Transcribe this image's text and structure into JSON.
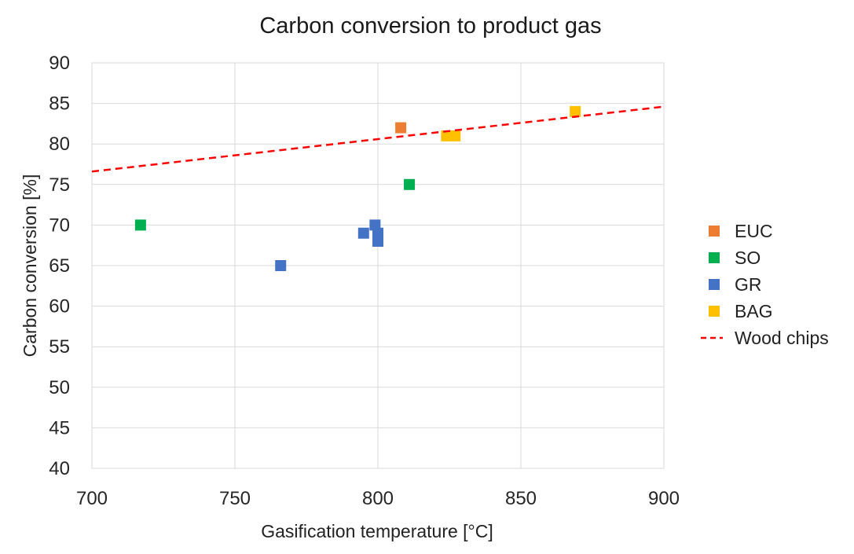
{
  "chart_data": {
    "type": "scatter",
    "title": "Carbon conversion to product gas",
    "xlabel": "Gasification temperature [°C]",
    "ylabel": "Carbon conversion [%]",
    "xlim": [
      700,
      900
    ],
    "ylim": [
      40,
      90
    ],
    "xticks": [
      700,
      750,
      800,
      850,
      900
    ],
    "yticks": [
      40,
      45,
      50,
      55,
      60,
      65,
      70,
      75,
      80,
      85,
      90
    ],
    "grid": true,
    "legend_position": "right",
    "series": [
      {
        "name": "EUC",
        "color": "#ED7D31",
        "marker": "square",
        "points": [
          [
            808,
            82
          ]
        ]
      },
      {
        "name": "SO",
        "color": "#00B050",
        "marker": "square",
        "points": [
          [
            717,
            70
          ],
          [
            811,
            75
          ]
        ]
      },
      {
        "name": "GR",
        "color": "#4472C4",
        "marker": "square",
        "points": [
          [
            766,
            65
          ],
          [
            795,
            69
          ],
          [
            799,
            70
          ],
          [
            800,
            69
          ],
          [
            800,
            68
          ]
        ]
      },
      {
        "name": "BAG",
        "color": "#FFC000",
        "marker": "square",
        "points": [
          [
            824,
            81
          ],
          [
            827,
            81
          ],
          [
            869,
            84
          ]
        ]
      },
      {
        "name": "Wood chips",
        "color": "#FF0000",
        "line_style": "dashed",
        "points": [
          [
            700,
            76.6
          ],
          [
            900,
            84.6
          ]
        ]
      }
    ]
  }
}
